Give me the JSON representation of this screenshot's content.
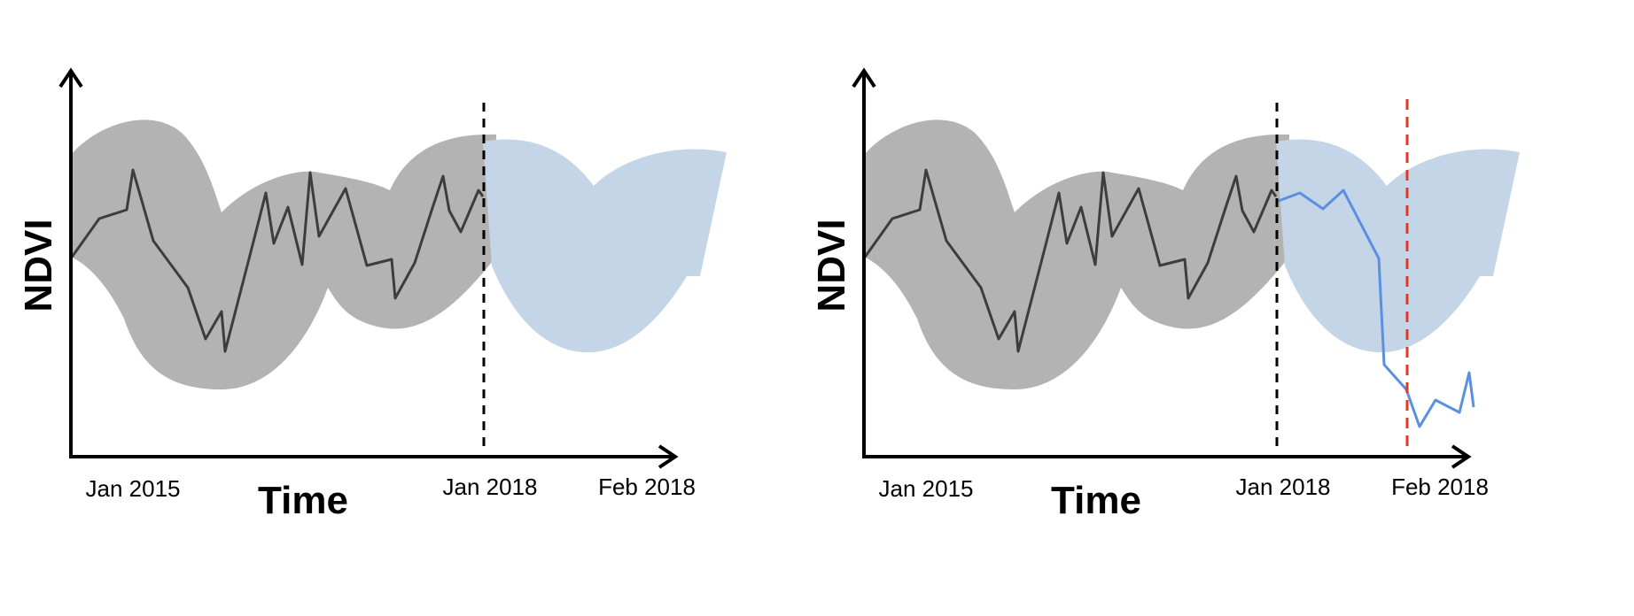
{
  "panels": [
    {
      "id": "left",
      "y_label": "NDVI",
      "x_label": "Time",
      "ticks": [
        "Jan 2015",
        "Jan 2018",
        "Feb 2018"
      ],
      "has_monitoring_series": false,
      "has_break_line": false
    },
    {
      "id": "right",
      "y_label": "NDVI",
      "x_label": "Time",
      "ticks": [
        "Jan 2015",
        "Jan 2018",
        "Feb 2018"
      ],
      "has_monitoring_series": true,
      "has_break_line": true
    }
  ],
  "colors": {
    "history_band": "#b3b3b3",
    "forecast_band": "#c5d5e8",
    "history_line": "#3d3d3d",
    "monitor_line": "#5b8fe0",
    "break_line": "#e03a22",
    "axis": "#000000"
  }
}
